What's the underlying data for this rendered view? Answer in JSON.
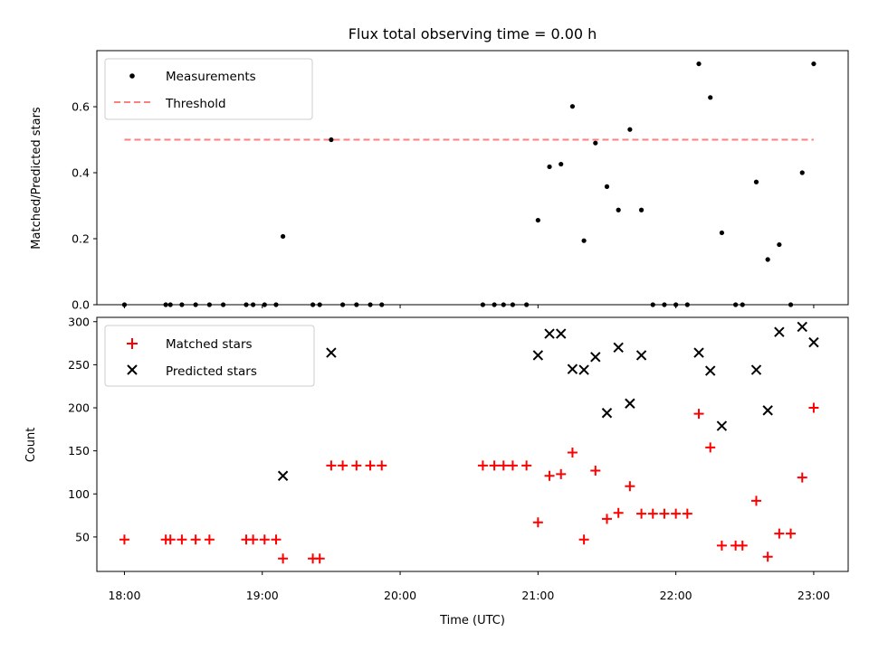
{
  "title": "Flux total observing time = 0.00 h",
  "colors": {
    "measure": "#000000",
    "threshold": "#ff7f7f",
    "matched": "#ff0000",
    "predicted": "#000000"
  },
  "chart_data": [
    {
      "type": "scatter",
      "ylabel": "Matched/Predicted stars",
      "xlim": [
        "17:48",
        "23:15"
      ],
      "ylim": [
        0,
        0.77
      ],
      "yticks": [
        "0.0",
        "0.2",
        "0.4",
        "0.6"
      ],
      "legend_placement": "upper-left",
      "legend": {
        "measurements": "Measurements",
        "threshold": "Threshold"
      },
      "threshold": {
        "value": 0.5,
        "x": [
          "18:00",
          "23:00"
        ]
      },
      "series": [
        {
          "name": "Measurements",
          "points": [
            [
              "18:00",
              0
            ],
            [
              "18:18",
              0
            ],
            [
              "18:20",
              0
            ],
            [
              "18:25",
              0
            ],
            [
              "18:31",
              0
            ],
            [
              "18:37",
              0
            ],
            [
              "18:43",
              0
            ],
            [
              "18:53",
              0
            ],
            [
              "18:56",
              0
            ],
            [
              "19:01",
              0
            ],
            [
              "19:06",
              0
            ],
            [
              "19:09",
              0.207
            ],
            [
              "19:22",
              0
            ],
            [
              "19:25",
              0
            ],
            [
              "19:30",
              0.5
            ],
            [
              "19:35",
              0
            ],
            [
              "19:41",
              0
            ],
            [
              "19:47",
              0
            ],
            [
              "19:52",
              0
            ],
            [
              "20:36",
              0
            ],
            [
              "20:41",
              0
            ],
            [
              "20:45",
              0
            ],
            [
              "20:49",
              0
            ],
            [
              "20:55",
              0
            ],
            [
              "21:00",
              0.256
            ],
            [
              "21:05",
              0.418
            ],
            [
              "21:10",
              0.426
            ],
            [
              "21:15",
              0.601
            ],
            [
              "21:20",
              0.194
            ],
            [
              "21:25",
              0.49
            ],
            [
              "21:30",
              0.358
            ],
            [
              "21:35",
              0.287
            ],
            [
              "21:40",
              0.531
            ],
            [
              "21:45",
              0.287
            ],
            [
              "21:50",
              0
            ],
            [
              "21:55",
              0
            ],
            [
              "22:00",
              0
            ],
            [
              "22:05",
              0
            ],
            [
              "22:10",
              0.73
            ],
            [
              "22:15",
              0.628
            ],
            [
              "22:20",
              0.218
            ],
            [
              "22:26",
              0
            ],
            [
              "22:29",
              0
            ],
            [
              "22:35",
              0.372
            ],
            [
              "22:40",
              0.137
            ],
            [
              "22:45",
              0.182
            ],
            [
              "22:50",
              0
            ],
            [
              "22:55",
              0.4
            ],
            [
              "23:00",
              0.73
            ]
          ]
        }
      ]
    },
    {
      "type": "scatter",
      "xlabel": "Time (UTC)",
      "ylabel": "Count",
      "xlim": [
        "17:48",
        "23:15"
      ],
      "ylim": [
        10,
        305
      ],
      "yticks": [
        "50",
        "100",
        "150",
        "200",
        "250",
        "300"
      ],
      "xticks": [
        "18:00",
        "19:00",
        "20:00",
        "21:00",
        "22:00",
        "23:00"
      ],
      "legend_placement": "upper-left",
      "legend": {
        "matched": "Matched stars",
        "predicted": "Predicted stars"
      },
      "series": [
        {
          "name": "Matched stars",
          "points": [
            [
              "18:00",
              47
            ],
            [
              "18:18",
              47
            ],
            [
              "18:20",
              47
            ],
            [
              "18:25",
              47
            ],
            [
              "18:31",
              47
            ],
            [
              "18:37",
              47
            ],
            [
              "18:53",
              47
            ],
            [
              "18:56",
              47
            ],
            [
              "19:01",
              47
            ],
            [
              "19:06",
              47
            ],
            [
              "19:09",
              25
            ],
            [
              "19:22",
              25
            ],
            [
              "19:25",
              25
            ],
            [
              "19:30",
              133
            ],
            [
              "19:35",
              133
            ],
            [
              "19:41",
              133
            ],
            [
              "19:47",
              133
            ],
            [
              "19:52",
              133
            ],
            [
              "20:36",
              133
            ],
            [
              "20:41",
              133
            ],
            [
              "20:45",
              133
            ],
            [
              "20:49",
              133
            ],
            [
              "20:55",
              133
            ],
            [
              "21:00",
              67
            ],
            [
              "21:05",
              121
            ],
            [
              "21:10",
              123
            ],
            [
              "21:15",
              148
            ],
            [
              "21:20",
              47
            ],
            [
              "21:25",
              127
            ],
            [
              "21:30",
              71
            ],
            [
              "21:35",
              78
            ],
            [
              "21:40",
              109
            ],
            [
              "21:45",
              77
            ],
            [
              "21:50",
              77
            ],
            [
              "21:55",
              77
            ],
            [
              "22:00",
              77
            ],
            [
              "22:05",
              77
            ],
            [
              "22:10",
              193
            ],
            [
              "22:15",
              154
            ],
            [
              "22:20",
              40
            ],
            [
              "22:26",
              40
            ],
            [
              "22:29",
              40
            ],
            [
              "22:35",
              92
            ],
            [
              "22:40",
              27
            ],
            [
              "22:45",
              54
            ],
            [
              "22:50",
              54
            ],
            [
              "22:55",
              119
            ],
            [
              "23:00",
              200
            ]
          ]
        },
        {
          "name": "Predicted stars",
          "points": [
            [
              "19:09",
              121
            ],
            [
              "19:30",
              264
            ],
            [
              "21:00",
              261
            ],
            [
              "21:05",
              286
            ],
            [
              "21:10",
              286
            ],
            [
              "21:15",
              245
            ],
            [
              "21:20",
              244
            ],
            [
              "21:25",
              259
            ],
            [
              "21:30",
              194
            ],
            [
              "21:35",
              270
            ],
            [
              "21:40",
              205
            ],
            [
              "21:45",
              261
            ],
            [
              "22:10",
              264
            ],
            [
              "22:15",
              243
            ],
            [
              "22:20",
              179
            ],
            [
              "22:35",
              244
            ],
            [
              "22:40",
              197
            ],
            [
              "22:45",
              288
            ],
            [
              "22:55",
              294
            ],
            [
              "23:00",
              276
            ]
          ]
        }
      ]
    }
  ]
}
